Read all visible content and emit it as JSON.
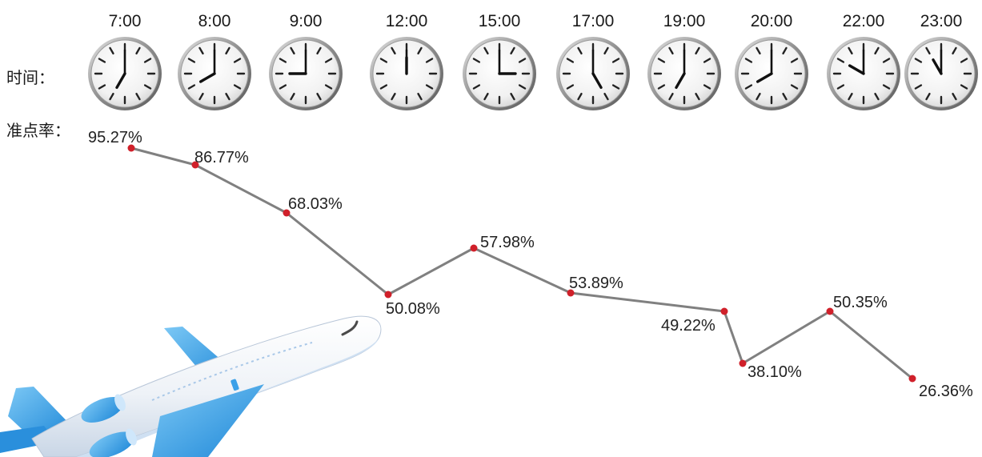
{
  "labels": {
    "time_row": "时间：",
    "rate_row": "准点率："
  },
  "icons": {
    "clock": "clock-icon",
    "plane": "airplane-icon"
  },
  "colors": {
    "line": "#808080",
    "point": "#d0202a",
    "plane_body": "#f2f6fb",
    "plane_blue": "#3aa0e8"
  },
  "chart_data": {
    "type": "line",
    "title": "",
    "xlabel": "时间：",
    "ylabel": "准点率：",
    "categories": [
      "7:00",
      "8:00",
      "9:00",
      "12:00",
      "15:00",
      "17:00",
      "19:00",
      "20:00",
      "22:00",
      "23:00"
    ],
    "series": [
      {
        "values": [
          95.27,
          86.77,
          68.03,
          50.08,
          57.98,
          53.89,
          49.22,
          38.1,
          50.35,
          26.36
        ]
      }
    ],
    "value_labels": [
      "95.27%",
      "86.77%",
      "68.03%",
      "50.08%",
      "57.98%",
      "53.89%",
      "49.22%",
      "38.10%",
      "50.35%",
      "26.36%"
    ],
    "clock_times": [
      [
        7,
        0
      ],
      [
        8,
        0
      ],
      [
        9,
        0
      ],
      [
        12,
        0
      ],
      [
        15,
        0
      ],
      [
        17,
        0
      ],
      [
        19,
        0
      ],
      [
        20,
        0
      ],
      [
        22,
        0
      ],
      [
        23,
        0
      ]
    ],
    "grid": false,
    "legend": "none"
  }
}
